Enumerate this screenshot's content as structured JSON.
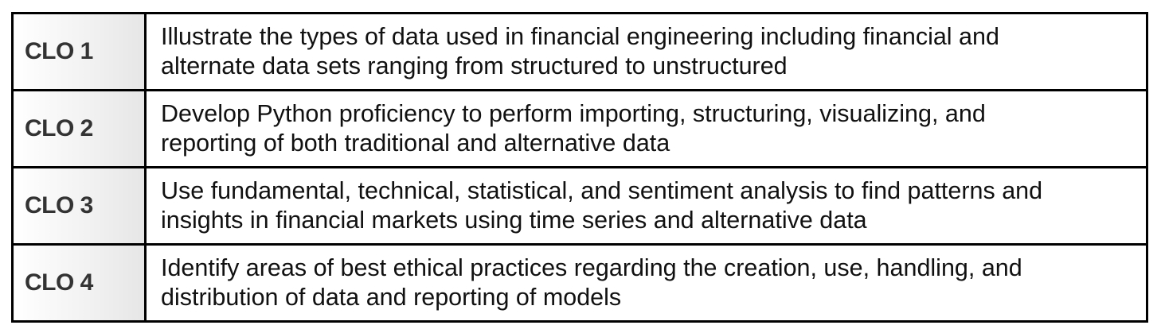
{
  "outcomes": [
    {
      "code": "CLO 1",
      "lines": [
        "Illustrate the types of data used in financial engineering including financial and",
        "alternate data sets ranging from structured to unstructured"
      ]
    },
    {
      "code": "CLO 2",
      "lines": [
        "Develop Python proficiency to perform importing, structuring, visualizing, and",
        "reporting of both traditional and alternative data"
      ]
    },
    {
      "code": "CLO 3",
      "lines": [
        "Use fundamental, technical, statistical, and sentiment analysis to find patterns and",
        "insights in financial markets using time series and alternative data"
      ]
    },
    {
      "code": "CLO 4",
      "lines": [
        "Identify areas of best ethical practices regarding the creation, use, handling, and",
        "distribution of data and reporting of models"
      ]
    }
  ]
}
